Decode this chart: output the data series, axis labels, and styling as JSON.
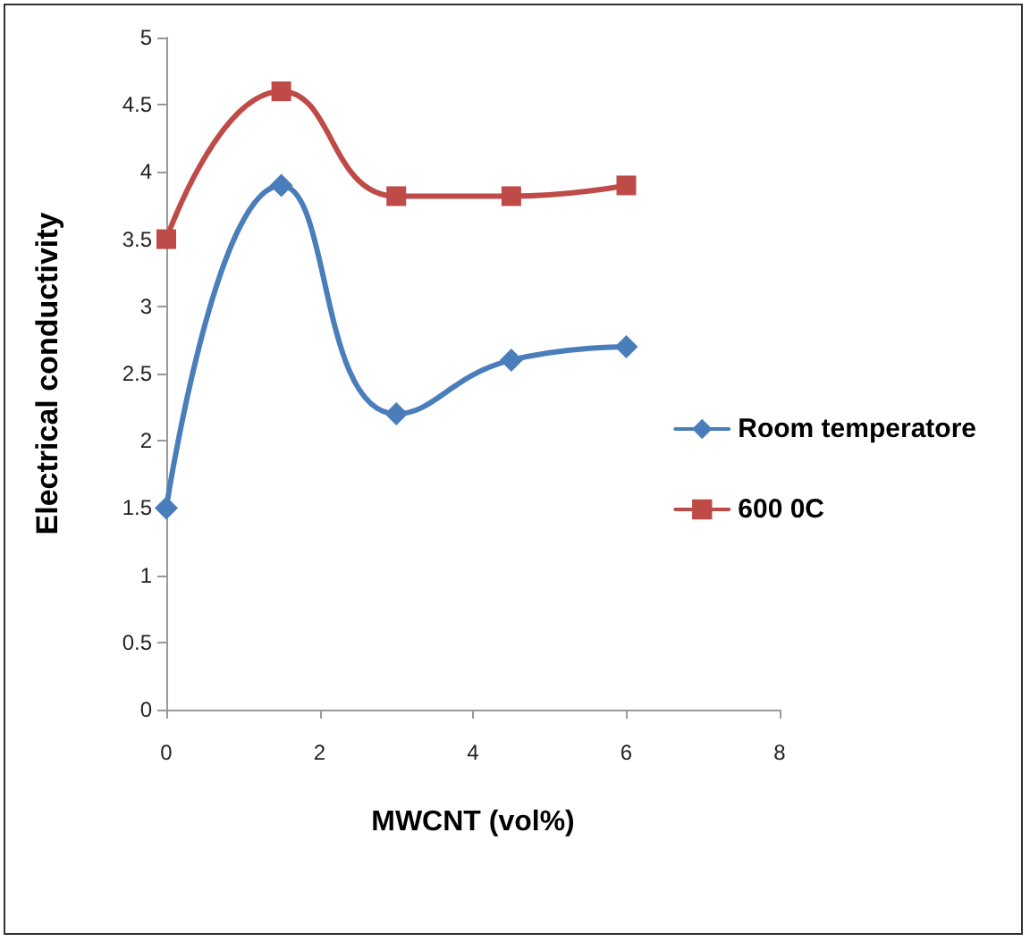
{
  "chart_data": {
    "type": "line",
    "xlabel": "MWCNT (vol%)",
    "ylabel": "Electrical conductivity",
    "xlim": [
      0,
      8
    ],
    "xticks": [
      0,
      2,
      4,
      6,
      8
    ],
    "ylim": [
      0,
      5
    ],
    "yticks": [
      0,
      0.5,
      1,
      1.5,
      2,
      2.5,
      3,
      3.5,
      4,
      4.5,
      5
    ],
    "x": [
      0,
      1.5,
      3,
      4.5,
      6
    ],
    "grid": false,
    "legend": "right",
    "line_style": "solid",
    "series": [
      {
        "name": "Room temperatore",
        "color": "#4a7ebb",
        "marker": "diamond",
        "values": [
          1.5,
          3.9,
          2.2,
          2.6,
          2.7
        ]
      },
      {
        "name": "600 0C",
        "color": "#be4b48",
        "marker": "square",
        "values": [
          3.5,
          4.6,
          3.82,
          3.82,
          3.9
        ]
      }
    ]
  }
}
